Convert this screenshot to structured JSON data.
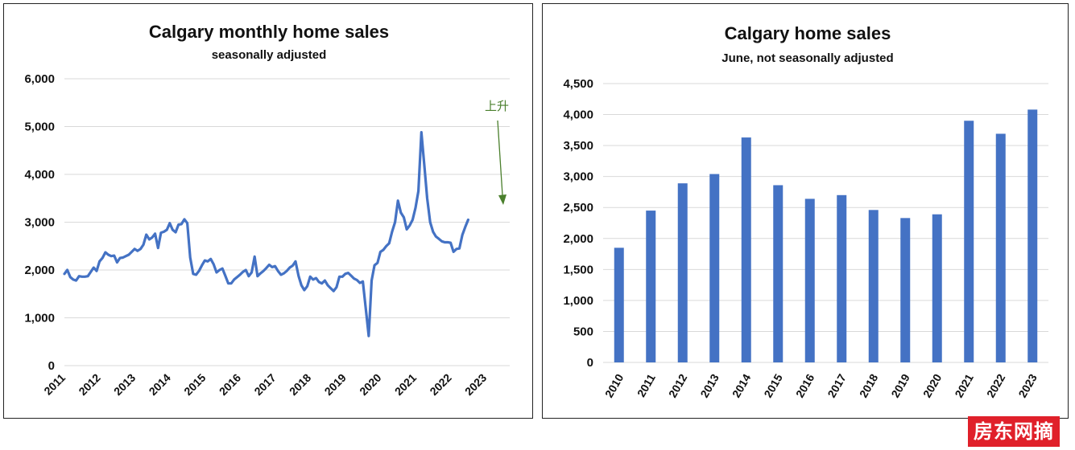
{
  "chart_data": [
    {
      "type": "line",
      "title": "Calgary monthly home sales",
      "subtitle": "seasonally adjusted",
      "xlabel": "",
      "ylabel": "",
      "ylim": [
        0,
        6000
      ],
      "yticks": [
        "6,000",
        "5,000",
        "4,000",
        "3,000",
        "2,000",
        "1,000",
        "0"
      ],
      "ytick_values": [
        6000,
        5000,
        4000,
        3000,
        2000,
        1000,
        0
      ],
      "xticks": [
        "2011",
        "2012",
        "2013",
        "2014",
        "2015",
        "2016",
        "2017",
        "2018",
        "2019",
        "2020",
        "2021",
        "2022",
        "2023"
      ],
      "grid": true,
      "line_color": "#4472c4",
      "annotation": {
        "text": "上升",
        "color": "#4a7f2c"
      },
      "series": [
        {
          "values": [
            1920,
            2000,
            1850,
            1800,
            1780,
            1870,
            1860,
            1860,
            1870,
            1960,
            2050,
            1980,
            2180,
            2250,
            2370,
            2320,
            2290,
            2300,
            2160,
            2250,
            2260,
            2290,
            2320,
            2380,
            2440,
            2400,
            2440,
            2530,
            2740,
            2640,
            2680,
            2760,
            2460,
            2780,
            2800,
            2840,
            2980,
            2840,
            2790,
            2950,
            2960,
            3060,
            2980,
            2260,
            1920,
            1900,
            1980,
            2100,
            2200,
            2180,
            2230,
            2120,
            1950,
            2000,
            2030,
            1880,
            1720,
            1720,
            1800,
            1850,
            1900,
            1960,
            2000,
            1870,
            1950,
            2280,
            1870,
            1930,
            1980,
            2040,
            2110,
            2060,
            2080,
            1980,
            1900,
            1930,
            1980,
            2050,
            2090,
            2180,
            1880,
            1680,
            1580,
            1660,
            1860,
            1800,
            1830,
            1750,
            1720,
            1780,
            1680,
            1620,
            1560,
            1640,
            1860,
            1860,
            1920,
            1940,
            1880,
            1820,
            1790,
            1730,
            1760,
            1200,
            620,
            1780,
            2100,
            2150,
            2380,
            2420,
            2500,
            2560,
            2800,
            3000,
            3450,
            3200,
            3100,
            2850,
            2930,
            3050,
            3300,
            3650,
            4880,
            4200,
            3500,
            3000,
            2800,
            2700,
            2650,
            2600,
            2580,
            2580,
            2570,
            2380,
            2440,
            2450,
            2730,
            2900,
            3050
          ]
        }
      ]
    },
    {
      "type": "bar",
      "title": "Calgary home sales",
      "subtitle": "June, not seasonally adjusted",
      "xlabel": "",
      "ylabel": "",
      "ylim": [
        0,
        4500
      ],
      "yticks": [
        "4,500",
        "4,000",
        "3,500",
        "3,000",
        "2,500",
        "2,000",
        "1,500",
        "1,000",
        "500",
        "0"
      ],
      "ytick_values": [
        4500,
        4000,
        3500,
        3000,
        2500,
        2000,
        1500,
        1000,
        500,
        0
      ],
      "grid": true,
      "bar_color": "#4472c4",
      "categories": [
        "2010",
        "2011",
        "2012",
        "2013",
        "2014",
        "2015",
        "2016",
        "2017",
        "2018",
        "2019",
        "2020",
        "2021",
        "2022",
        "2023"
      ],
      "values": [
        1850,
        2450,
        2890,
        3040,
        3630,
        2860,
        2640,
        2700,
        2460,
        2330,
        2390,
        3900,
        3690,
        4080
      ]
    }
  ],
  "watermark": "房东网摘"
}
